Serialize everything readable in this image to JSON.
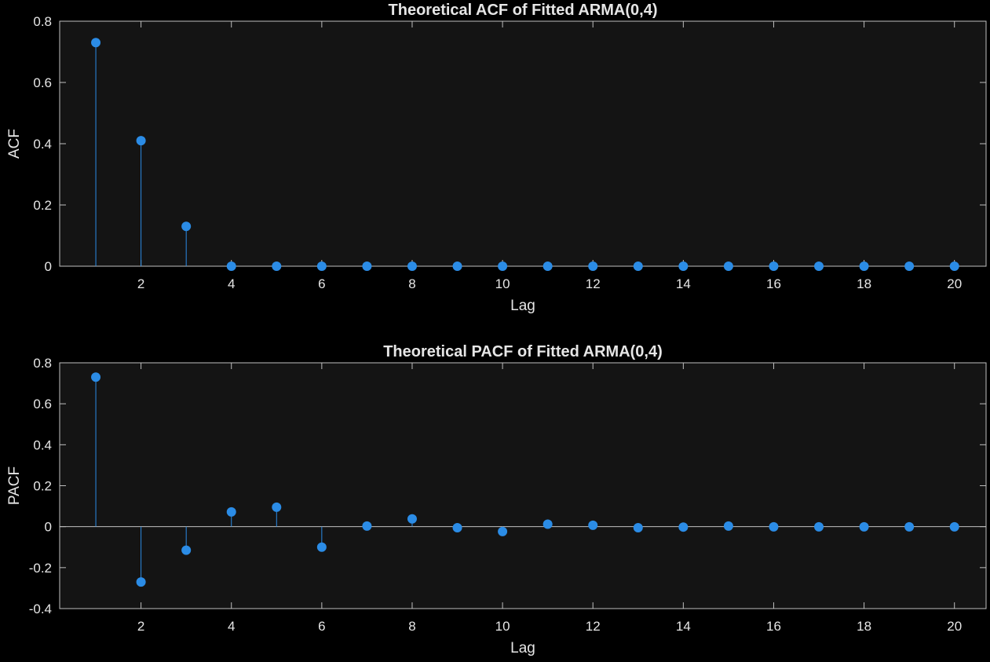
{
  "figure": {
    "background": "#000000",
    "axes_background": "#141414",
    "axis_color": "#bfbfbf",
    "text_color": "#e6e6e6"
  },
  "chart_data": [
    {
      "type": "stem",
      "title": "Theoretical ACF of Fitted ARMA(0,4)",
      "xlabel": "Lag",
      "ylabel": "ACF",
      "xlim": [
        0.2,
        20.7
      ],
      "ylim": [
        0,
        0.8
      ],
      "xticks": [
        2,
        4,
        6,
        8,
        10,
        12,
        14,
        16,
        18,
        20
      ],
      "xtick_labels": [
        "2",
        "4",
        "6",
        "8",
        "10",
        "12",
        "14",
        "16",
        "18",
        "20"
      ],
      "yticks": [
        0,
        0.2,
        0.4,
        0.6,
        0.8
      ],
      "ytick_labels": [
        "0",
        "0.2",
        "0.4",
        "0.6",
        "0.8"
      ],
      "grid": false,
      "color": "#2b8ce6",
      "x": [
        1,
        2,
        3,
        4,
        5,
        6,
        7,
        8,
        9,
        10,
        11,
        12,
        13,
        14,
        15,
        16,
        17,
        18,
        19,
        20
      ],
      "values": [
        0.73,
        0.41,
        0.13,
        0,
        0,
        0,
        0,
        0,
        0,
        0,
        0,
        0,
        0,
        0,
        0,
        0,
        0,
        0,
        0,
        0
      ]
    },
    {
      "type": "stem",
      "title": "Theoretical PACF of Fitted ARMA(0,4)",
      "xlabel": "Lag",
      "ylabel": "PACF",
      "xlim": [
        0.2,
        20.7
      ],
      "ylim": [
        -0.4,
        0.8
      ],
      "xticks": [
        2,
        4,
        6,
        8,
        10,
        12,
        14,
        16,
        18,
        20
      ],
      "xtick_labels": [
        "2",
        "4",
        "6",
        "8",
        "10",
        "12",
        "14",
        "16",
        "18",
        "20"
      ],
      "yticks": [
        -0.4,
        -0.2,
        0,
        0.2,
        0.4,
        0.6,
        0.8
      ],
      "ytick_labels": [
        "-0.4",
        "-0.2",
        "0",
        "0.2",
        "0.4",
        "0.6",
        "0.8"
      ],
      "grid": false,
      "color": "#2b8ce6",
      "x": [
        1,
        2,
        3,
        4,
        5,
        6,
        7,
        8,
        9,
        10,
        11,
        12,
        13,
        14,
        15,
        16,
        17,
        18,
        19,
        20
      ],
      "values": [
        0.73,
        -0.27,
        -0.115,
        0.072,
        0.095,
        -0.1,
        0.003,
        0.038,
        -0.005,
        -0.024,
        0.012,
        0.007,
        -0.005,
        -0.002,
        0.003,
        -0.001,
        -0.001,
        -0.001,
        -0.001,
        -0.001
      ]
    }
  ]
}
